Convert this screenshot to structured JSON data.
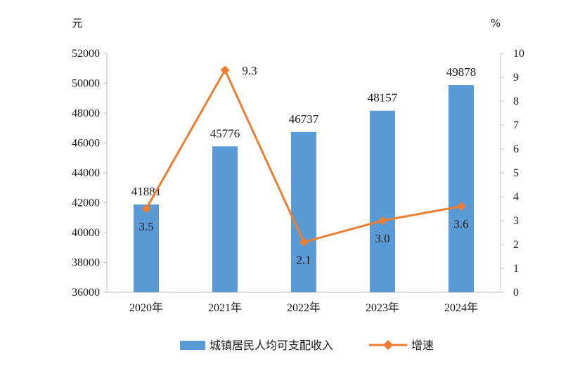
{
  "chart_data": {
    "type": "bar+line",
    "categories": [
      "2020年",
      "2021年",
      "2022年",
      "2023年",
      "2024年"
    ],
    "series": [
      {
        "name": "城镇居民人均可支配收入",
        "type": "bar",
        "axis": "left",
        "values": [
          41881,
          45776,
          46737,
          48157,
          49878
        ],
        "labels": [
          "41881",
          "45776",
          "46737",
          "48157",
          "49878"
        ],
        "color": "#5B9BD5"
      },
      {
        "name": "增速",
        "type": "line",
        "axis": "right",
        "values": [
          3.5,
          9.3,
          2.1,
          3.0,
          3.6
        ],
        "labels": [
          "3.5",
          "9.3",
          "2.1",
          "3.0",
          "3.6"
        ],
        "color": "#ED7D31"
      }
    ],
    "y_left": {
      "unit": "元",
      "range": [
        36000,
        52000
      ],
      "ticks": [
        "36000",
        "38000",
        "40000",
        "42000",
        "44000",
        "46000",
        "48000",
        "50000",
        "52000"
      ]
    },
    "y_right": {
      "unit": "%",
      "range": [
        0,
        10
      ],
      "ticks": [
        "0",
        "1",
        "2",
        "3",
        "4",
        "5",
        "6",
        "7",
        "8",
        "9",
        "10"
      ]
    },
    "grid": false,
    "legend_position": "bottom"
  }
}
